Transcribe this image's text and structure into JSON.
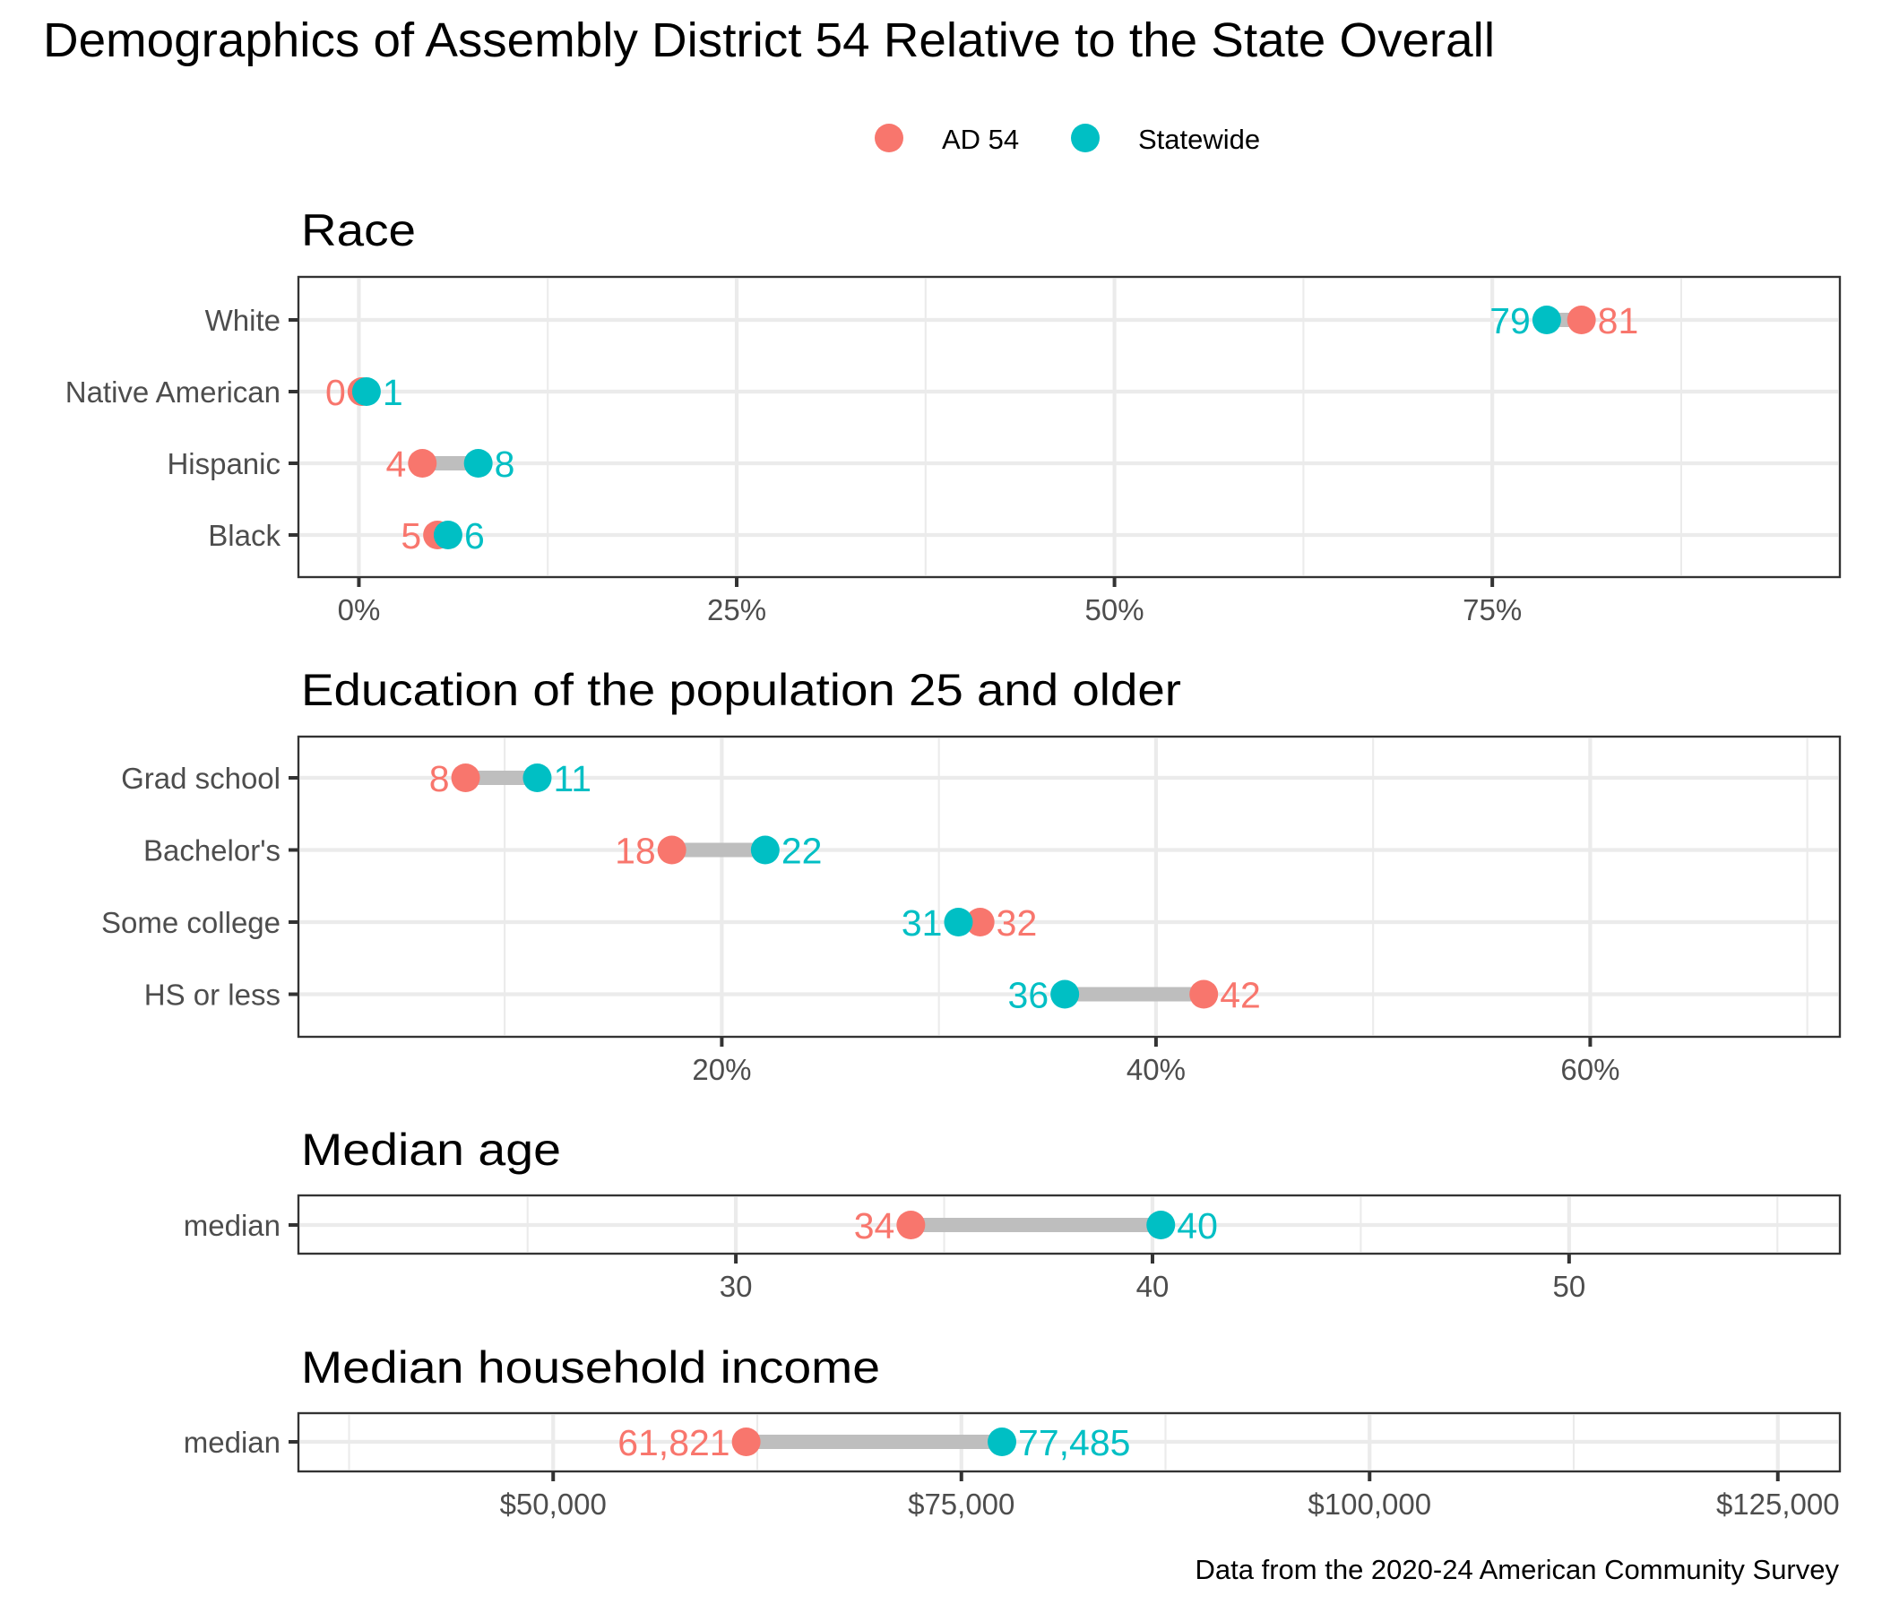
{
  "title": "Demographics of Assembly District 54 Relative to the State Overall",
  "caption": "Data from the 2020-24 American Community Survey",
  "legend": {
    "position": "top-center",
    "items": [
      {
        "label": "AD 54",
        "color": "#F8766D"
      },
      {
        "label": "Statewide",
        "color": "#00BFC4"
      }
    ]
  },
  "chart_data": [
    {
      "type": "dumbbell",
      "title": "Race",
      "xlabel": "",
      "ylabel": "",
      "xlim": [
        -4,
        98
      ],
      "x_ticks": [
        0,
        25,
        50,
        75
      ],
      "x_tick_labels": [
        "0%",
        "25%",
        "50%",
        "75%"
      ],
      "x_minor_ticks": [
        12.5,
        37.5,
        62.5,
        87.5
      ],
      "grid": true,
      "categories": [
        "White",
        "Native American",
        "Hispanic",
        "Black"
      ],
      "series": [
        {
          "name": "AD 54",
          "values": [
            80.9,
            0.2,
            4.2,
            5.2
          ],
          "labels": [
            "81",
            "0",
            "4",
            "5"
          ]
        },
        {
          "name": "Statewide",
          "values": [
            78.6,
            0.5,
            7.9,
            5.9
          ],
          "labels": [
            "79",
            "1",
            "8",
            "6"
          ]
        }
      ]
    },
    {
      "type": "dumbbell",
      "title": "Education of the population 25 and older",
      "xlabel": "",
      "ylabel": "",
      "xlim": [
        0.5,
        71.5
      ],
      "x_ticks": [
        20,
        40,
        60
      ],
      "x_tick_labels": [
        "20%",
        "40%",
        "60%"
      ],
      "x_minor_ticks": [
        10,
        30,
        50,
        70
      ],
      "grid": true,
      "categories": [
        "Grad school",
        "Bachelor's",
        "Some college",
        "HS or less"
      ],
      "series": [
        {
          "name": "AD 54",
          "values": [
            8.2,
            17.7,
            31.9,
            42.2
          ],
          "labels": [
            "8",
            "18",
            "32",
            "42"
          ]
        },
        {
          "name": "Statewide",
          "values": [
            11.5,
            22.0,
            30.9,
            35.8
          ],
          "labels": [
            "11",
            "22",
            "31",
            "36"
          ]
        }
      ]
    },
    {
      "type": "dumbbell",
      "title": "Median age",
      "xlabel": "",
      "ylabel": "",
      "xlim": [
        19.5,
        56.5
      ],
      "x_ticks": [
        30,
        40,
        50
      ],
      "x_tick_labels": [
        "30",
        "40",
        "50"
      ],
      "x_minor_ticks": [
        25,
        35,
        45,
        55
      ],
      "grid": true,
      "categories": [
        "median"
      ],
      "series": [
        {
          "name": "AD 54",
          "values": [
            34.2
          ],
          "labels": [
            "34"
          ]
        },
        {
          "name": "Statewide",
          "values": [
            40.2
          ],
          "labels": [
            "40"
          ]
        }
      ]
    },
    {
      "type": "dumbbell",
      "title": "Median household income",
      "xlabel": "",
      "ylabel": "",
      "xlim": [
        34400,
        128800
      ],
      "x_ticks": [
        50000,
        75000,
        100000,
        125000
      ],
      "x_tick_labels": [
        "$50,000",
        "$75,000",
        "$100,000",
        "$125,000"
      ],
      "x_minor_ticks": [
        37500,
        62500,
        87500,
        112500
      ],
      "grid": true,
      "categories": [
        "median"
      ],
      "series": [
        {
          "name": "AD 54",
          "values": [
            61821
          ],
          "labels": [
            "61,821"
          ]
        },
        {
          "name": "Statewide",
          "values": [
            77485
          ],
          "labels": [
            "77,485"
          ]
        }
      ]
    }
  ]
}
